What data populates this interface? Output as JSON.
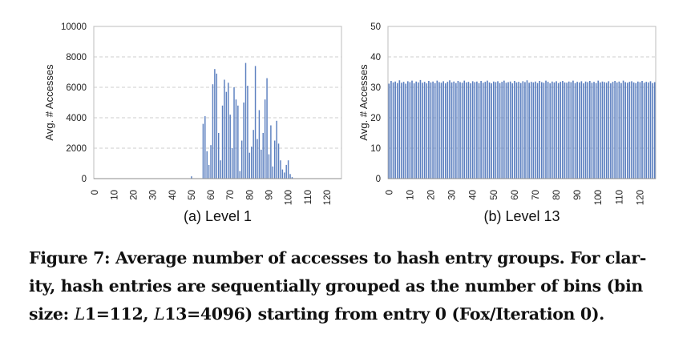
{
  "chart_data": [
    {
      "type": "bar",
      "subtitle": "(a) Level 1",
      "ylabel": "Avg. # Accesses",
      "xlabel": "",
      "ylim": [
        0,
        10000
      ],
      "yticks": [
        0,
        2000,
        4000,
        6000,
        8000,
        10000
      ],
      "xticks": [
        0,
        10,
        20,
        30,
        40,
        50,
        60,
        70,
        80,
        90,
        100,
        110,
        120
      ],
      "xlim": [
        0,
        128
      ],
      "grid": "horizontal-dashed",
      "bar_color": "#5b7fbf",
      "x": [
        50,
        56,
        57,
        58,
        59,
        60,
        61,
        62,
        63,
        64,
        65,
        66,
        67,
        68,
        69,
        70,
        71,
        72,
        73,
        74,
        75,
        76,
        77,
        78,
        79,
        80,
        81,
        82,
        83,
        84,
        85,
        86,
        87,
        88,
        89,
        90,
        91,
        92,
        93,
        94,
        95,
        96,
        97,
        98,
        99,
        100,
        101,
        102
      ],
      "values": [
        150,
        3600,
        4100,
        1800,
        900,
        2200,
        6200,
        7200,
        6900,
        3000,
        1200,
        4800,
        6500,
        5700,
        6300,
        4200,
        2000,
        6000,
        5200,
        4800,
        500,
        2500,
        5000,
        7600,
        6100,
        1700,
        2100,
        3200,
        7400,
        2600,
        4500,
        1900,
        3000,
        5200,
        6600,
        1600,
        3500,
        800,
        2500,
        3800,
        2300,
        1200,
        600,
        400,
        900,
        1200,
        300,
        100
      ]
    },
    {
      "type": "bar",
      "subtitle": "(b) Level 13",
      "ylabel": "Avg. # Accesses",
      "xlabel": "",
      "ylim": [
        0,
        50
      ],
      "yticks": [
        0,
        10,
        20,
        30,
        40,
        50
      ],
      "xticks": [
        0,
        10,
        20,
        30,
        40,
        50,
        60,
        70,
        80,
        90,
        100,
        110,
        120
      ],
      "xlim": [
        0,
        128
      ],
      "grid": "horizontal-dashed",
      "bar_color": "#5b7fbf",
      "x": [
        0,
        1,
        2,
        3,
        4,
        5,
        6,
        7,
        8,
        9,
        10,
        11,
        12,
        13,
        14,
        15,
        16,
        17,
        18,
        19,
        20,
        21,
        22,
        23,
        24,
        25,
        26,
        27,
        28,
        29,
        30,
        31,
        32,
        33,
        34,
        35,
        36,
        37,
        38,
        39,
        40,
        41,
        42,
        43,
        44,
        45,
        46,
        47,
        48,
        49,
        50,
        51,
        52,
        53,
        54,
        55,
        56,
        57,
        58,
        59,
        60,
        61,
        62,
        63,
        64,
        65,
        66,
        67,
        68,
        69,
        70,
        71,
        72,
        73,
        74,
        75,
        76,
        77,
        78,
        79,
        80,
        81,
        82,
        83,
        84,
        85,
        86,
        87,
        88,
        89,
        90,
        91,
        92,
        93,
        94,
        95,
        96,
        97,
        98,
        99,
        100,
        101,
        102,
        103,
        104,
        105,
        106,
        107,
        108,
        109,
        110,
        111,
        112,
        113,
        114,
        115,
        116,
        117,
        118,
        119,
        120,
        121,
        122,
        123,
        124,
        125,
        126,
        127
      ],
      "values": [
        31.2,
        32.1,
        31.6,
        31.9,
        31.4,
        32.3,
        31.5,
        31.8,
        31.2,
        32.0,
        31.7,
        32.2,
        31.3,
        31.9,
        31.6,
        32.4,
        31.5,
        31.8,
        31.3,
        32.1,
        31.6,
        31.9,
        31.4,
        32.2,
        31.7,
        31.5,
        32.0,
        31.3,
        31.8,
        32.3,
        31.6,
        31.9,
        31.4,
        32.1,
        31.7,
        31.5,
        32.2,
        31.6,
        31.8,
        31.3,
        32.0,
        31.7,
        31.9,
        31.4,
        32.1,
        31.5,
        31.8,
        32.2,
        31.6,
        31.3,
        31.9,
        31.7,
        32.0,
        31.4,
        31.8,
        32.2,
        31.5,
        31.7,
        31.9,
        31.3,
        32.1,
        31.6,
        31.8,
        31.4,
        32.0,
        31.7,
        32.3,
        31.5,
        31.8,
        31.6,
        31.9,
        31.4,
        32.1,
        31.7,
        31.5,
        32.2,
        31.8,
        31.3,
        31.9,
        31.6,
        32.0,
        31.4,
        31.8,
        32.1,
        31.6,
        31.5,
        31.9,
        31.7,
        32.2,
        31.4,
        31.8,
        31.6,
        32.0,
        31.3,
        31.9,
        31.7,
        32.1,
        31.5,
        31.8,
        31.4,
        32.2,
        31.6,
        31.9,
        31.7,
        31.5,
        32.0,
        31.3,
        31.8,
        32.1,
        31.6,
        31.9,
        31.4,
        32.2,
        31.7,
        31.5,
        31.8,
        32.0,
        31.6,
        31.4,
        31.9,
        31.7,
        32.1,
        31.5,
        31.8,
        31.6,
        32.0,
        31.4,
        31.7
      ]
    }
  ],
  "caption": {
    "line1": "Figure 7: Average number of accesses to hash entry groups. For clar-",
    "line2": "ity, hash entries are sequentially grouped as the number of bins (bin",
    "line3_a": "size: ",
    "line3_b": "L",
    "line3_c": "1=112, ",
    "line3_d": "L",
    "line3_e": "13=4096) starting from entry 0 (Fox/Iteration 0)."
  }
}
